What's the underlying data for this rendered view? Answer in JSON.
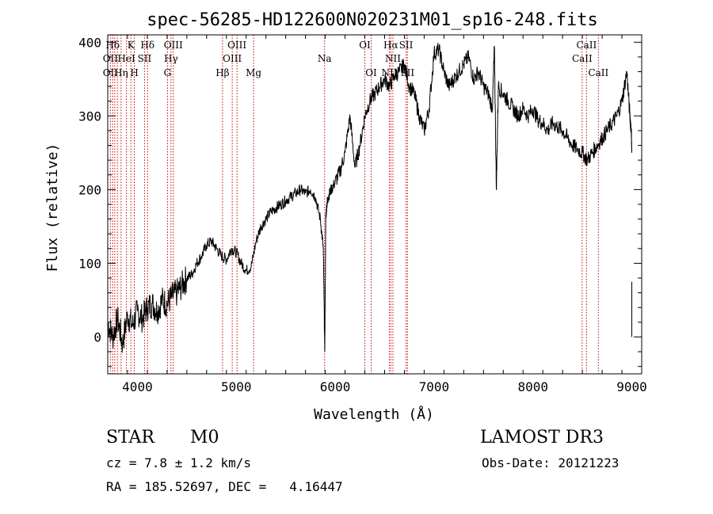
{
  "chart_data": {
    "type": "line",
    "title": "spec-56285-HD122600N020231M01_sp16-248.fits",
    "xlabel": "Wavelength (Å)",
    "ylabel": "Flux (relative)",
    "xlim": [
      3700,
      9100
    ],
    "ylim": [
      -50,
      410
    ],
    "xticks": [
      4000,
      5000,
      6000,
      7000,
      8000,
      9000
    ],
    "yticks": [
      0,
      100,
      200,
      300,
      400
    ],
    "grid": false,
    "series": [
      {
        "line_color": "#000000",
        "x": [
          3700,
          3750,
          3800,
          3850,
          3900,
          3950,
          4000,
          4050,
          4100,
          4150,
          4200,
          4250,
          4300,
          4350,
          4400,
          4450,
          4500,
          4550,
          4600,
          4650,
          4700,
          4750,
          4800,
          4850,
          4900,
          4950,
          5000,
          5050,
          5100,
          5150,
          5200,
          5250,
          5300,
          5350,
          5400,
          5450,
          5500,
          5550,
          5600,
          5650,
          5700,
          5750,
          5800,
          5850,
          5880,
          5895,
          5905,
          5915,
          5930,
          5960,
          6000,
          6050,
          6100,
          6150,
          6200,
          6250,
          6300,
          6350,
          6400,
          6450,
          6500,
          6550,
          6600,
          6650,
          6700,
          6750,
          6800,
          6850,
          6900,
          6950,
          7000,
          7050,
          7100,
          7150,
          7200,
          7250,
          7300,
          7350,
          7400,
          7450,
          7500,
          7550,
          7590,
          7610,
          7630,
          7650,
          7700,
          7750,
          7800,
          7850,
          7900,
          7950,
          8000,
          8050,
          8100,
          8150,
          8200,
          8250,
          8300,
          8350,
          8400,
          8450,
          8500,
          8550,
          8600,
          8650,
          8700,
          8750,
          8800,
          8850,
          8900,
          8950,
          8980,
          8995,
          9000
        ],
        "y": [
          20,
          0,
          25,
          -10,
          30,
          15,
          35,
          25,
          40,
          45,
          35,
          50,
          45,
          55,
          60,
          70,
          80,
          85,
          100,
          110,
          125,
          130,
          120,
          110,
          105,
          120,
          115,
          100,
          90,
          95,
          130,
          150,
          160,
          170,
          175,
          180,
          185,
          190,
          195,
          200,
          195,
          200,
          190,
          160,
          120,
          -20,
          160,
          180,
          190,
          200,
          210,
          225,
          250,
          300,
          230,
          260,
          300,
          320,
          330,
          340,
          350,
          340,
          355,
          360,
          370,
          340,
          330,
          300,
          280,
          310,
          385,
          390,
          360,
          340,
          350,
          360,
          370,
          380,
          350,
          360,
          340,
          330,
          310,
          395,
          200,
          340,
          330,
          320,
          310,
          300,
          310,
          300,
          310,
          295,
          290,
          280,
          290,
          285,
          280,
          270,
          260,
          255,
          250,
          240,
          250,
          260,
          270,
          280,
          290,
          300,
          320,
          360,
          300,
          280,
          250
        ]
      }
    ],
    "line_labels": [
      {
        "name": "Hδ",
        "wave": 3750,
        "row": 0
      },
      {
        "name": "K",
        "wave": 3934,
        "row": 0
      },
      {
        "name": "Hδ",
        "wave": 4102,
        "row": 0
      },
      {
        "name": "OIII",
        "wave": 4363,
        "row": 0
      },
      {
        "name": "OIII",
        "wave": 5007,
        "row": 0
      },
      {
        "name": "OI",
        "wave": 6300,
        "row": 0
      },
      {
        "name": "Hα",
        "wave": 6563,
        "row": 0
      },
      {
        "name": "SII",
        "wave": 6717,
        "row": 0
      },
      {
        "name": "CaII",
        "wave": 8542,
        "row": 0
      },
      {
        "name": "OII",
        "wave": 3727,
        "row": 1
      },
      {
        "name": "HeI",
        "wave": 3889,
        "row": 1
      },
      {
        "name": "SII",
        "wave": 4072,
        "row": 1
      },
      {
        "name": "Hγ",
        "wave": 4340,
        "row": 1
      },
      {
        "name": "OIII",
        "wave": 4959,
        "row": 1
      },
      {
        "name": "Na",
        "wave": 5893,
        "row": 1
      },
      {
        "name": "NII",
        "wave": 6584,
        "row": 1
      },
      {
        "name": "CaII",
        "wave": 8498,
        "row": 1
      },
      {
        "name": "OII",
        "wave": 3727,
        "row": 2
      },
      {
        "name": "Hη",
        "wave": 3835,
        "row": 2
      },
      {
        "name": "H",
        "wave": 3969,
        "row": 2
      },
      {
        "name": "G",
        "wave": 4304,
        "row": 2
      },
      {
        "name": "Hβ",
        "wave": 4861,
        "row": 2
      },
      {
        "name": "Mg",
        "wave": 5175,
        "row": 2
      },
      {
        "name": "OI",
        "wave": 6364,
        "row": 2
      },
      {
        "name": "NII",
        "wave": 6548,
        "row": 2
      },
      {
        "name": "SII",
        "wave": 6731,
        "row": 2
      },
      {
        "name": "CaII",
        "wave": 8662,
        "row": 2
      }
    ],
    "line_positions": [
      3727,
      3750,
      3771,
      3798,
      3835,
      3889,
      3934,
      3969,
      4072,
      4102,
      4304,
      4340,
      4363,
      4861,
      4959,
      5007,
      5175,
      5893,
      6300,
      6364,
      6548,
      6563,
      6584,
      6717,
      6731,
      8498,
      8542,
      8662
    ],
    "line_marker_color": "#cc0000"
  },
  "info": {
    "object_class": "STAR",
    "subclass": "M0",
    "survey": "LAMOST DR3",
    "cz": "cz = 7.8 ± 1.2 km/s",
    "obs_date": "Obs-Date: 20121223",
    "radec": "RA = 185.52697, DEC =   4.16447"
  }
}
